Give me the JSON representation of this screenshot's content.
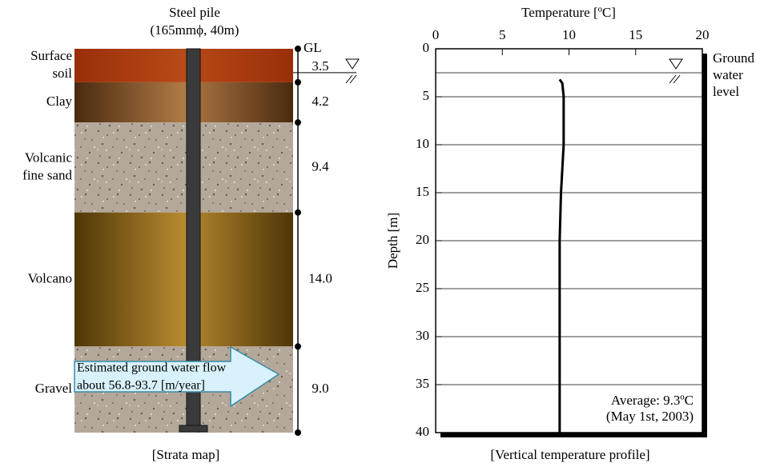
{
  "strata": {
    "pile_title": [
      "Steel pile",
      "(165mmϕ, 40m)"
    ],
    "surface_label": "GL",
    "layers": [
      {
        "name": [
          "Surface",
          "soil"
        ],
        "thickness": 3.5
      },
      {
        "name": [
          "Clay"
        ],
        "thickness": 4.2
      },
      {
        "name": [
          "Volcanic",
          "fine sand"
        ],
        "thickness": 9.4
      },
      {
        "name": [
          "Volcano"
        ],
        "thickness": 14.0,
        "thickness_label": "14.0"
      },
      {
        "name": [
          "Gravel"
        ],
        "thickness": 9.0,
        "thickness_label": "9.0"
      }
    ],
    "flow_text": [
      "Estimated ground water flow",
      "about 56.8-93.7 [m/year]"
    ],
    "caption": "[Strata map]"
  },
  "chart_data": {
    "type": "line",
    "x_label": "Temperature [ºC]",
    "y_label": "Depth [m]",
    "x": [
      9.3,
      9.5,
      9.6,
      9.6,
      9.4,
      9.3,
      9.3,
      9.3,
      9.3,
      9.3
    ],
    "values": [
      3.2,
      3.6,
      5,
      10,
      15,
      20,
      25,
      30,
      35,
      40
    ],
    "color": "#000000",
    "xlim": [
      0,
      20
    ],
    "xticks": [
      0,
      5,
      10,
      15,
      20
    ],
    "ylim": [
      0,
      40
    ],
    "yticks": [
      0,
      5,
      10,
      15,
      20,
      25,
      30,
      35,
      40
    ],
    "y_inverted": true,
    "grid": true,
    "groundwater_depth": 2.5,
    "groundwater_label": [
      "Ground",
      "water",
      "level"
    ],
    "annotations": [
      "Average: 9.3ºC",
      "(May 1st, 2003)"
    ],
    "caption": "[Vertical temperature profile]"
  }
}
